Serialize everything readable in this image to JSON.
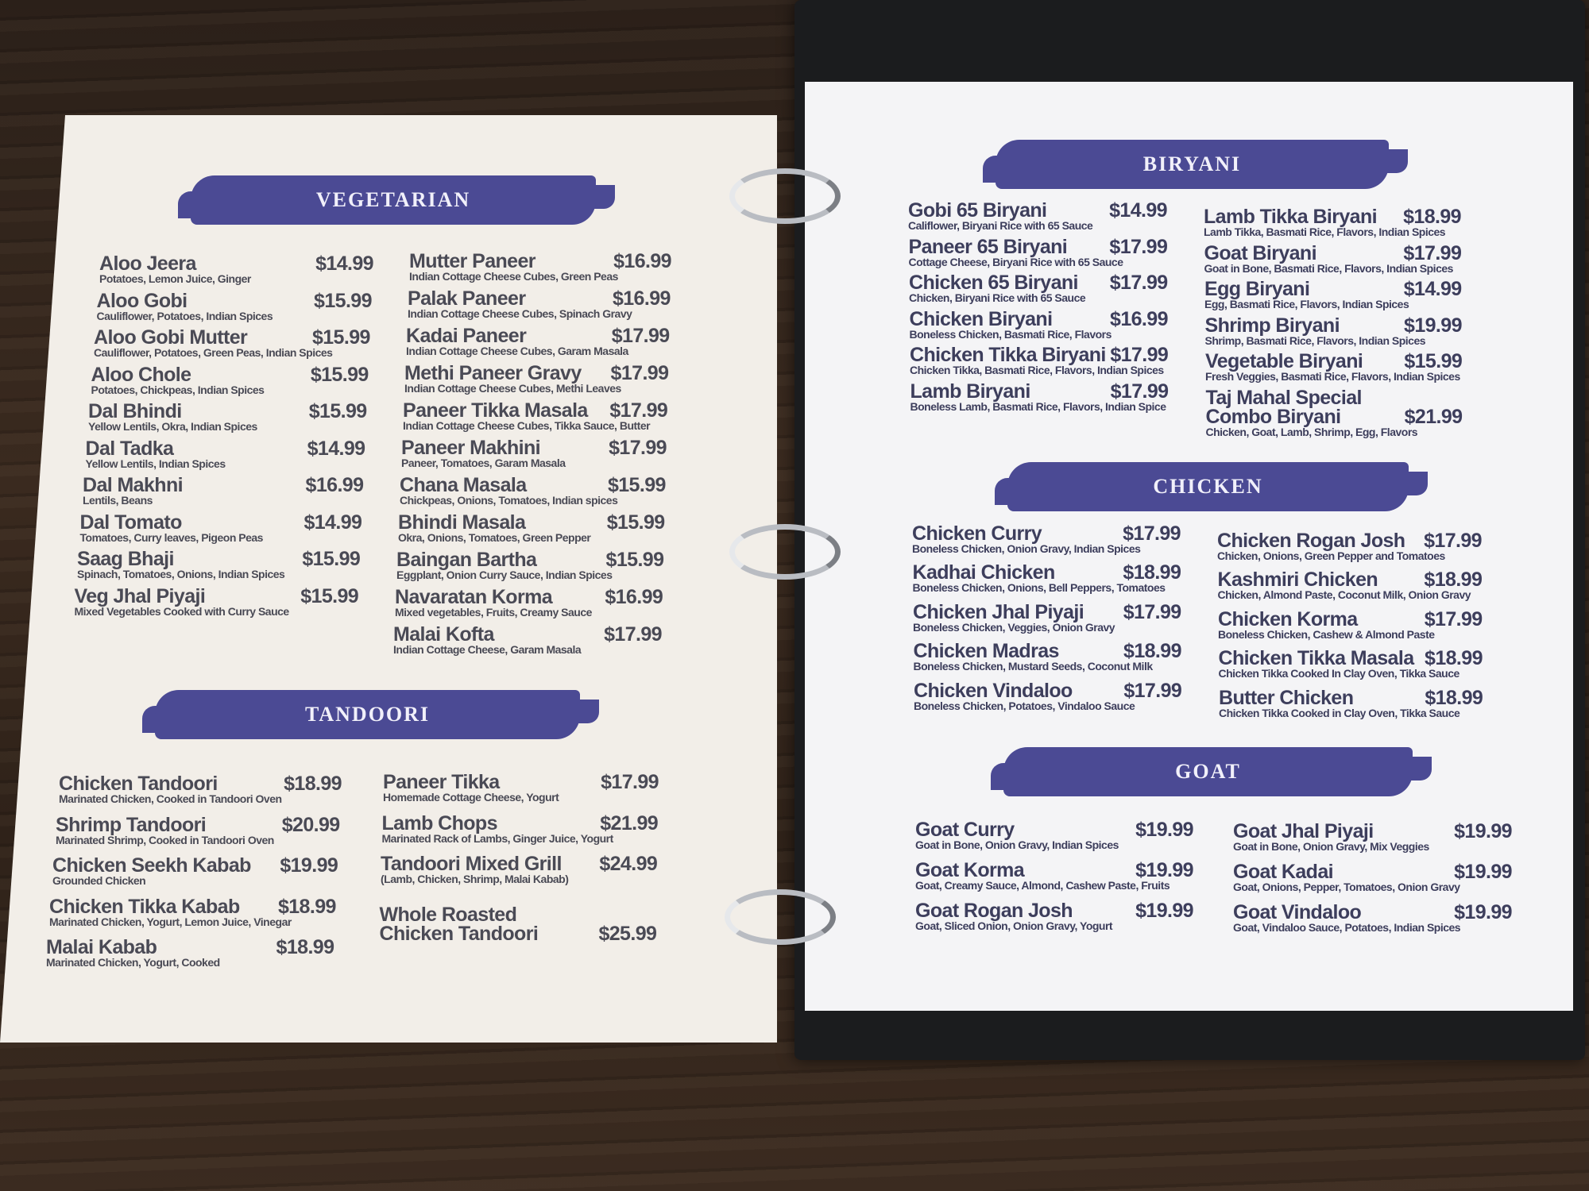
{
  "colors": {
    "banner": "#4b4a94",
    "text_left": "#4a4a55",
    "text_right": "#3d3e5c"
  },
  "vegetarian": {
    "title": "VEGETARIAN",
    "left": [
      {
        "name": "Aloo Jeera",
        "desc": "Potatoes, Lemon Juice, Ginger",
        "price": "$14.99"
      },
      {
        "name": "Aloo Gobi",
        "desc": "Cauliflower, Potatoes, Indian Spices",
        "price": "$15.99"
      },
      {
        "name": "Aloo Gobi Mutter",
        "desc": "Cauliflower, Potatoes, Green Peas, Indian Spices",
        "price": "$15.99"
      },
      {
        "name": "Aloo Chole",
        "desc": "Potatoes, Chickpeas, Indian Spices",
        "price": "$15.99"
      },
      {
        "name": "Dal Bhindi",
        "desc": "Yellow Lentils, Okra, Indian Spices",
        "price": "$15.99"
      },
      {
        "name": "Dal Tadka",
        "desc": "Yellow Lentils, Indian Spices",
        "price": "$14.99"
      },
      {
        "name": "Dal Makhni",
        "desc": "Lentils, Beans",
        "price": "$16.99"
      },
      {
        "name": "Dal Tomato",
        "desc": "Tomatoes, Curry leaves, Pigeon Peas",
        "price": "$14.99"
      },
      {
        "name": "Saag Bhaji",
        "desc": "Spinach, Tomatoes, Onions, Indian Spices",
        "price": "$15.99"
      },
      {
        "name": "Veg Jhal Piyaji",
        "desc": "Mixed Vegetables Cooked with Curry Sauce",
        "price": "$15.99"
      }
    ],
    "right": [
      {
        "name": "Mutter Paneer",
        "desc": "Indian Cottage Cheese Cubes, Green Peas",
        "price": "$16.99"
      },
      {
        "name": "Palak Paneer",
        "desc": "Indian Cottage Cheese Cubes, Spinach Gravy",
        "price": "$16.99"
      },
      {
        "name": "Kadai Paneer",
        "desc": "Indian Cottage Cheese Cubes, Garam Masala",
        "price": "$17.99"
      },
      {
        "name": "Methi Paneer Gravy",
        "desc": "Indian Cottage Cheese Cubes, Methi Leaves",
        "price": "$17.99"
      },
      {
        "name": "Paneer Tikka Masala",
        "desc": "Indian Cottage Cheese Cubes, Tikka Sauce, Butter",
        "price": "$17.99"
      },
      {
        "name": "Paneer Makhini",
        "desc": "Paneer, Tomatoes, Garam Masala",
        "price": "$17.99"
      },
      {
        "name": "Chana Masala",
        "desc": "Chickpeas, Onions, Tomatoes, Indian spices",
        "price": "$15.99"
      },
      {
        "name": "Bhindi Masala",
        "desc": "Okra, Onions, Tomatoes, Green Pepper",
        "price": "$15.99"
      },
      {
        "name": "Baingan Bartha",
        "desc": "Eggplant, Onion Curry Sauce, Indian Spices",
        "price": "$15.99"
      },
      {
        "name": "Navaratan Korma",
        "desc": "Mixed vegetables, Fruits, Creamy Sauce",
        "price": "$16.99"
      },
      {
        "name": "Malai Kofta",
        "desc": "Indian Cottage Cheese, Garam Masala",
        "price": "$17.99"
      }
    ]
  },
  "tandoori": {
    "title": "TANDOORI",
    "left": [
      {
        "name": "Chicken Tandoori",
        "desc": "Marinated Chicken, Cooked in Tandoori Oven",
        "price": "$18.99"
      },
      {
        "name": "Shrimp Tandoori",
        "desc": "Marinated Shrimp, Cooked in Tandoori Oven",
        "price": "$20.99"
      },
      {
        "name": "Chicken Seekh Kabab",
        "desc": "Grounded Chicken",
        "price": "$19.99"
      },
      {
        "name": "Chicken Tikka Kabab",
        "desc": "Marinated Chicken, Yogurt, Lemon Juice, Vinegar",
        "price": "$18.99"
      },
      {
        "name": "Malai Kabab",
        "desc": "Marinated Chicken, Yogurt, Cooked",
        "price": "$18.99"
      }
    ],
    "right": [
      {
        "name": "Paneer Tikka",
        "desc": "Homemade Cottage Cheese, Yogurt",
        "price": "$17.99"
      },
      {
        "name": "Lamb Chops",
        "desc": "Marinated Rack of Lambs, Ginger Juice, Yogurt",
        "price": "$21.99"
      },
      {
        "name": "Tandoori Mixed Grill",
        "desc": "(Lamb, Chicken, Shrimp, Malai Kabab)",
        "price": "$24.99"
      },
      {
        "name": "Whole Roasted\nChicken Tandoori",
        "desc": "",
        "price": "$25.99"
      }
    ]
  },
  "biryani": {
    "title": "BIRYANI",
    "left": [
      {
        "name": "Gobi 65 Biryani",
        "desc": "Califlower, Biryani Rice with 65 Sauce",
        "price": "$14.99"
      },
      {
        "name": "Paneer 65 Biryani",
        "desc": "Cottage Cheese, Biryani Rice with 65 Sauce",
        "price": "$17.99"
      },
      {
        "name": "Chicken 65 Biryani",
        "desc": "Chicken, Biryani Rice with 65 Sauce",
        "price": "$17.99"
      },
      {
        "name": "Chicken Biryani",
        "desc": "Boneless Chicken, Basmati Rice, Flavors",
        "price": "$16.99"
      },
      {
        "name": "Chicken Tikka Biryani",
        "desc": "Chicken Tikka, Basmati Rice, Flavors, Indian Spices",
        "price": "$17.99"
      },
      {
        "name": "Lamb Biryani",
        "desc": "Boneless Lamb, Basmati Rice, Flavors, Indian Spice",
        "price": "$17.99"
      }
    ],
    "right": [
      {
        "name": "Lamb Tikka Biryani",
        "desc": "Lamb Tikka, Basmati Rice, Flavors, Indian Spices",
        "price": "$18.99"
      },
      {
        "name": "Goat Biryani",
        "desc": "Goat in Bone, Basmati Rice, Flavors, Indian Spices",
        "price": "$17.99"
      },
      {
        "name": "Egg Biryani",
        "desc": "Egg, Basmati Rice, Flavors, Indian Spices",
        "price": "$14.99"
      },
      {
        "name": "Shrimp Biryani",
        "desc": "Shrimp, Basmati Rice, Flavors, Indian Spices",
        "price": "$19.99"
      },
      {
        "name": "Vegetable Biryani",
        "desc": "Fresh Veggies, Basmati Rice, Flavors, Indian Spices",
        "price": "$15.99"
      },
      {
        "name": "Taj Mahal Special\nCombo Biryani",
        "desc": "Chicken, Goat, Lamb, Shrimp, Egg, Flavors",
        "price": "$21.99"
      }
    ]
  },
  "chicken": {
    "title": "CHICKEN",
    "left": [
      {
        "name": "Chicken Curry",
        "desc": "Boneless Chicken, Onion Gravy, Indian Spices",
        "price": "$17.99"
      },
      {
        "name": "Kadhai Chicken",
        "desc": "Boneless Chicken, Onions, Bell Peppers, Tomatoes",
        "price": "$18.99"
      },
      {
        "name": "Chicken Jhal Piyaji",
        "desc": "Boneless Chicken, Veggies, Onion Gravy",
        "price": "$17.99"
      },
      {
        "name": "Chicken Madras",
        "desc": "Boneless Chicken, Mustard Seeds, Coconut Milk",
        "price": "$18.99"
      },
      {
        "name": "Chicken Vindaloo",
        "desc": "Boneless Chicken, Potatoes, Vindaloo Sauce",
        "price": "$17.99"
      }
    ],
    "right": [
      {
        "name": "Chicken Rogan Josh",
        "desc": "Chicken, Onions, Green Pepper and Tomatoes",
        "price": "$17.99"
      },
      {
        "name": "Kashmiri Chicken",
        "desc": "Chicken, Almond Paste, Coconut Milk, Onion Gravy",
        "price": "$18.99"
      },
      {
        "name": "Chicken Korma",
        "desc": "Boneless Chicken, Cashew & Almond Paste",
        "price": "$17.99"
      },
      {
        "name": "Chicken Tikka Masala",
        "desc": "Chicken Tikka Cooked In Clay Oven, Tikka Sauce",
        "price": "$18.99"
      },
      {
        "name": "Butter Chicken",
        "desc": "Chicken Tikka Cooked in Clay Oven, Tikka Sauce",
        "price": "$18.99"
      }
    ]
  },
  "goat": {
    "title": "GOAT",
    "left": [
      {
        "name": "Goat Curry",
        "desc": "Goat in Bone, Onion Gravy, Indian Spices",
        "price": "$19.99"
      },
      {
        "name": "Goat Korma",
        "desc": "Goat, Creamy Sauce, Almond, Cashew Paste, Fruits",
        "price": "$19.99"
      },
      {
        "name": "Goat Rogan Josh",
        "desc": "Goat, Sliced Onion, Onion Gravy, Yogurt",
        "price": "$19.99"
      }
    ],
    "right": [
      {
        "name": "Goat Jhal Piyaji",
        "desc": "Goat in Bone, Onion Gravy, Mix Veggies",
        "price": "$19.99"
      },
      {
        "name": "Goat Kadai",
        "desc": "Goat, Onions, Pepper, Tomatoes, Onion Gravy",
        "price": "$19.99"
      },
      {
        "name": "Goat Vindaloo",
        "desc": "Goat, Vindaloo Sauce, Potatoes, Indian Spices",
        "price": "$19.99"
      }
    ]
  }
}
